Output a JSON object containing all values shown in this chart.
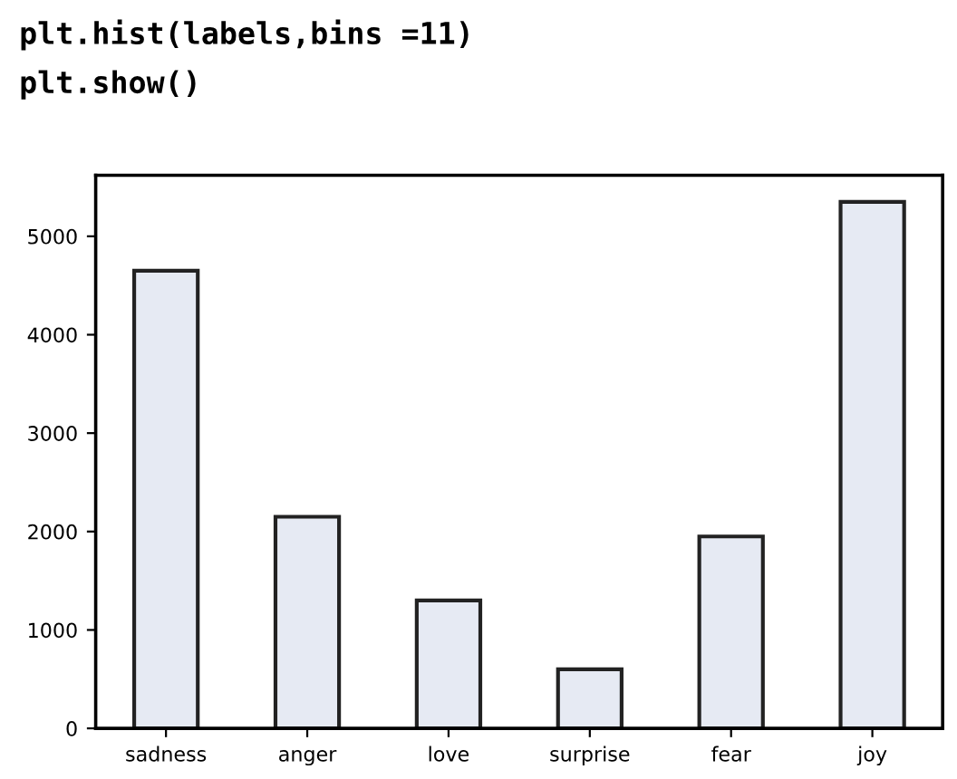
{
  "chart_data": {
    "type": "bar",
    "categories": [
      "sadness",
      "anger",
      "love",
      "surprise",
      "fear",
      "joy"
    ],
    "values": [
      4650,
      2150,
      1300,
      600,
      1950,
      5350
    ],
    "color": "#e6eaf3",
    "ylim": [
      0,
      5620
    ],
    "yticks": [
      0,
      1000,
      2000,
      3000,
      4000,
      5000
    ],
    "grid": false,
    "annotations": [
      "plt.hist(labels,bins =11)",
      "plt.show()"
    ]
  }
}
